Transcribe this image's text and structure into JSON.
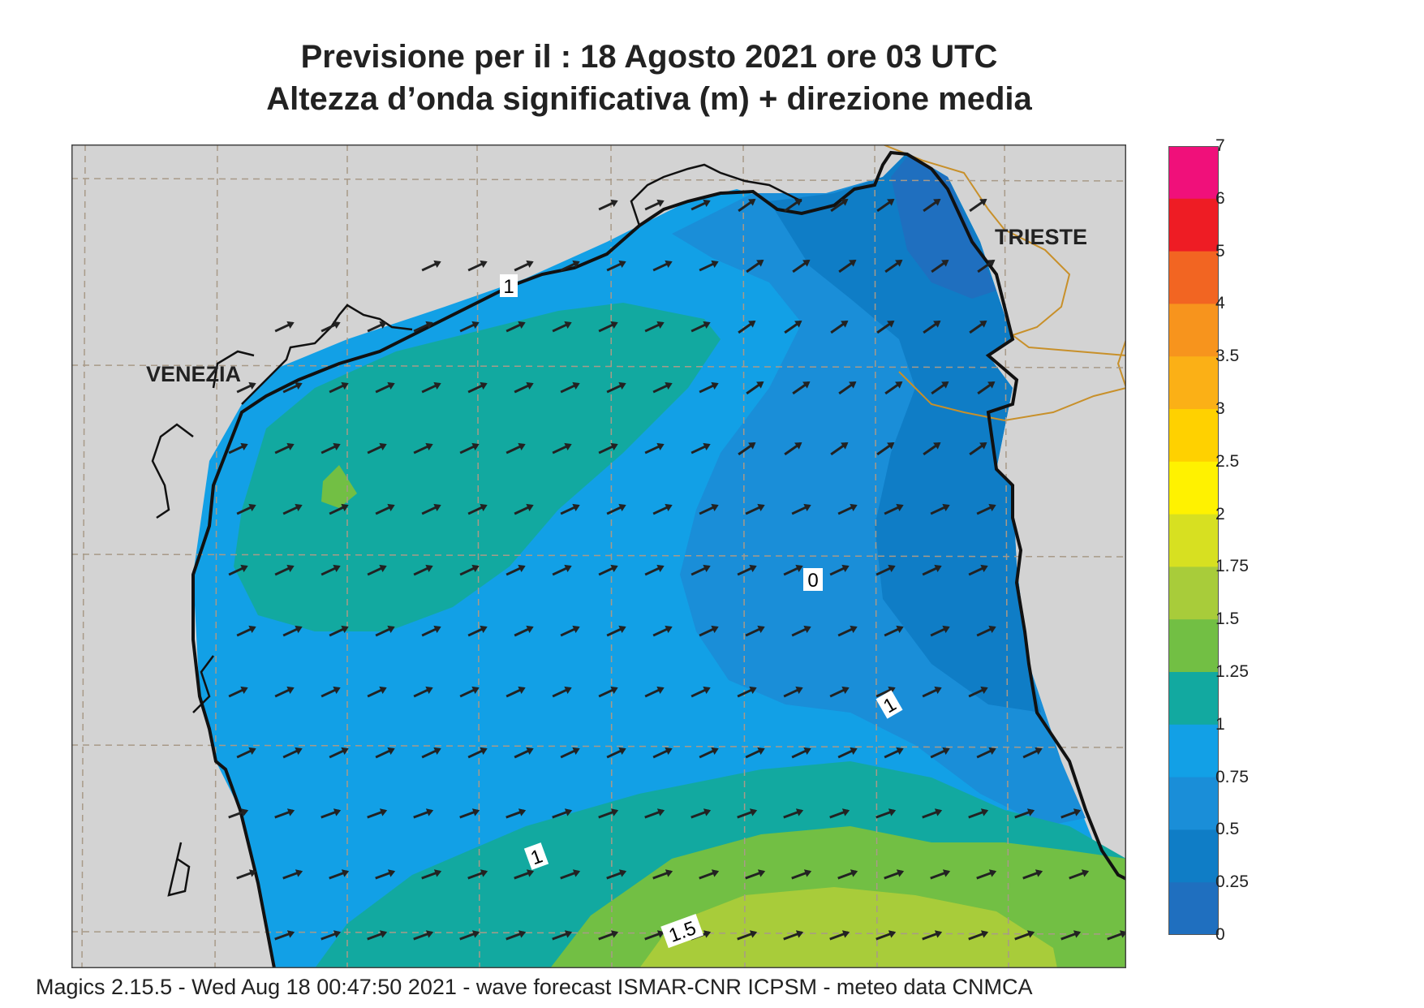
{
  "title": {
    "line1": "Previsione per il  :  18   Agosto  2021   ore 03 UTC",
    "line2": "Altezza d’onda significativa (m) + direzione media"
  },
  "map": {
    "cities": [
      {
        "name": "VENEZIA"
      },
      {
        "name": "TRIESTE"
      }
    ],
    "contour_labels": [
      "1",
      "0",
      "1",
      "1",
      "1.5"
    ],
    "colors": {
      "land": "#d3d3d3",
      "band_0_25": "#1f6fbf",
      "band_25_50": "#0f7dc6",
      "band_50_75": "#1a8ed8",
      "band_75_1": "#12a0e6",
      "band_1_125": "#12a9a0",
      "band_125_15": "#72bf44",
      "band_15_175": "#a8cc3a",
      "coast": "#111111",
      "border": "#c8902a",
      "grid": "#a89a88",
      "arrow": "#222222"
    },
    "arrow_icon": "wave-direction-arrow-icon"
  },
  "colorbar": {
    "stops": [
      {
        "label": "7",
        "color": "#f0107a"
      },
      {
        "label": "6",
        "color": "#ee1c24"
      },
      {
        "label": "5",
        "color": "#f26522"
      },
      {
        "label": "4",
        "color": "#f7941d"
      },
      {
        "label": "3.5",
        "color": "#fbb016"
      },
      {
        "label": "3",
        "color": "#ffd100"
      },
      {
        "label": "2.5",
        "color": "#fff200"
      },
      {
        "label": "2",
        "color": "#d7e021"
      },
      {
        "label": "1.75",
        "color": "#a8cc3a"
      },
      {
        "label": "1.5",
        "color": "#72bf44"
      },
      {
        "label": "1.25",
        "color": "#12a9a0"
      },
      {
        "label": "1",
        "color": "#12a0e6"
      },
      {
        "label": "0.75",
        "color": "#1a8ed8"
      },
      {
        "label": "0.5",
        "color": "#0f7dc6"
      },
      {
        "label": "0.25",
        "color": "#1f6fbf"
      },
      {
        "label": "0",
        "color": ""
      }
    ]
  },
  "footer": "Magics 2.15.5 - Wed Aug 18 00:47:50 2021 - wave forecast  ISMAR-CNR  ICPSM - meteo data   CNMCA"
}
